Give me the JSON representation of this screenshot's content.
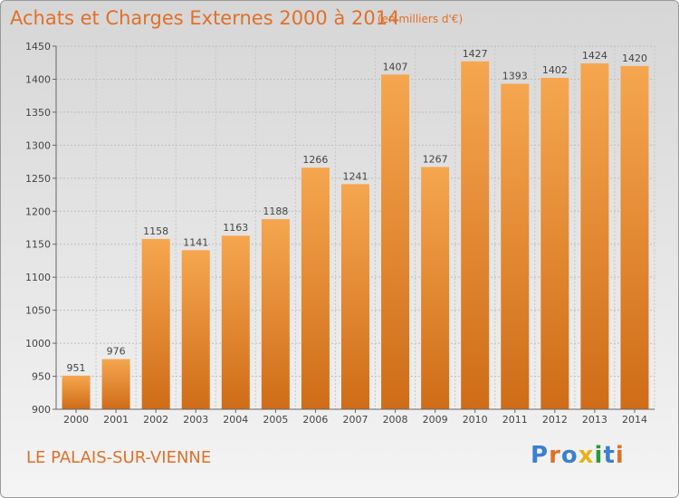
{
  "title": "Achats et Charges Externes 2000 à 2014",
  "subtitle": "(en milliers d'€)",
  "location": "LE PALAIS-SUR-VIENNE",
  "logo": {
    "letters": [
      "P",
      "r",
      "o",
      "x",
      "i",
      "t",
      "i"
    ],
    "colors": [
      "#3d7fd0",
      "#e0702a",
      "#3d7fd0",
      "#e7b21a",
      "#2b9a3b",
      "#3d7fd0",
      "#e0702a"
    ]
  },
  "colors": {
    "bar_top": "#f6a650",
    "bar_bottom": "#cf6c18",
    "accent": "#e0702a"
  },
  "chart_data": {
    "type": "bar",
    "title": "Achats et Charges Externes 2000 à 2014",
    "subtitle": "(en milliers d'€)",
    "categories": [
      "2000",
      "2001",
      "2002",
      "2003",
      "2004",
      "2005",
      "2006",
      "2007",
      "2008",
      "2009",
      "2010",
      "2011",
      "2012",
      "2013",
      "2014"
    ],
    "values": [
      951,
      976,
      1158,
      1141,
      1163,
      1188,
      1266,
      1241,
      1407,
      1267,
      1427,
      1393,
      1402,
      1424,
      1420
    ],
    "ylim": [
      900,
      1450
    ],
    "yticks": [
      900,
      950,
      1000,
      1050,
      1100,
      1150,
      1200,
      1250,
      1300,
      1350,
      1400,
      1450
    ],
    "grid": true,
    "data_labels": true
  }
}
